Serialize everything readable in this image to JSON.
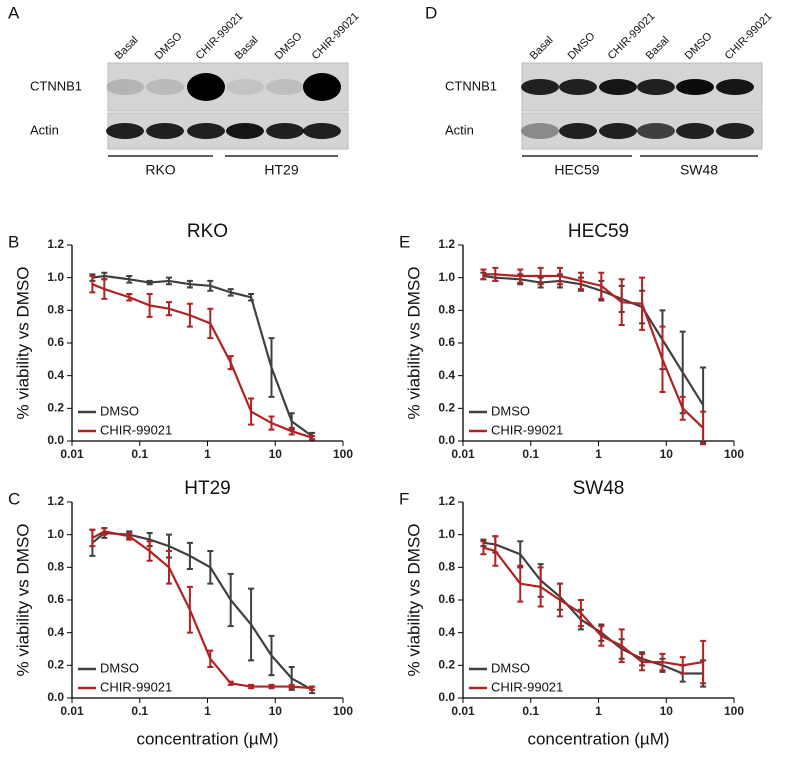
{
  "blots": [
    {
      "panel": "A",
      "row_labels": [
        "CTNNB1",
        "Actin"
      ],
      "lanes": [
        "Basal",
        "DMSO",
        "CHIR-99021",
        "Basal",
        "DMSO",
        "CHIR-99021"
      ],
      "groups": [
        "RKO",
        "HT29"
      ]
    },
    {
      "panel": "D",
      "row_labels": [
        "CTNNB1",
        "Actin"
      ],
      "lanes": [
        "Basal",
        "DMSO",
        "CHIR-99021",
        "Basal",
        "DMSO",
        "CHIR-99021"
      ],
      "groups": [
        "HEC59",
        "SW48"
      ]
    }
  ],
  "chart_data": [
    {
      "type": "line",
      "panel": "B",
      "title": "RKO",
      "ylabel": "% viability vs DMSO",
      "log_x": true,
      "x": [
        0.02,
        0.03,
        0.07,
        0.14,
        0.27,
        0.55,
        1.1,
        2.2,
        4.4,
        8.8,
        17.5,
        35
      ],
      "xlim": [
        0.01,
        100
      ],
      "xticks": [
        0.01,
        0.1,
        1,
        10,
        100
      ],
      "ylim": [
        0,
        1.2
      ],
      "yticks": [
        {
          "value": 0,
          "label": "0.0"
        },
        0.2,
        0.4,
        0.6,
        0.8,
        {
          "value": 1,
          "label": "1.0"
        },
        1.2
      ],
      "legend": "lower left",
      "series": [
        {
          "name": "DMSO",
          "color": "#404040",
          "values": [
            1.0,
            1.01,
            0.99,
            0.97,
            0.98,
            0.96,
            0.95,
            0.91,
            0.88,
            0.45,
            0.12,
            0.03
          ],
          "errors": [
            0.02,
            0.02,
            0.02,
            0.01,
            0.02,
            0.02,
            0.03,
            0.02,
            0.02,
            0.18,
            0.05,
            0.02
          ]
        },
        {
          "name": "CHIR-99021",
          "color": "#b22222",
          "values": [
            0.96,
            0.93,
            0.88,
            0.83,
            0.81,
            0.77,
            0.72,
            0.48,
            0.18,
            0.11,
            0.06,
            0.02
          ],
          "errors": [
            0.05,
            0.06,
            0.02,
            0.07,
            0.04,
            0.07,
            0.09,
            0.04,
            0.08,
            0.04,
            0.02,
            0.01
          ]
        }
      ]
    },
    {
      "type": "line",
      "panel": "C",
      "title": "HT29",
      "ylabel": "% viability vs DMSO",
      "xlabel": "concentration (µM)",
      "log_x": true,
      "x": [
        0.02,
        0.03,
        0.07,
        0.14,
        0.27,
        0.55,
        1.1,
        2.2,
        4.4,
        8.8,
        17.5,
        35
      ],
      "xlim": [
        0.01,
        100
      ],
      "xticks": [
        0.01,
        0.1,
        1,
        10,
        100
      ],
      "ylim": [
        0,
        1.2
      ],
      "yticks": [
        {
          "value": 0,
          "label": "0.0"
        },
        0.2,
        0.4,
        0.6,
        0.8,
        {
          "value": 1,
          "label": "1.0"
        },
        1.2
      ],
      "legend": "lower left",
      "series": [
        {
          "name": "DMSO",
          "color": "#404040",
          "values": [
            0.95,
            1.01,
            1.0,
            0.97,
            0.93,
            0.87,
            0.8,
            0.6,
            0.45,
            0.26,
            0.12,
            0.05
          ],
          "errors": [
            0.08,
            0.03,
            0.02,
            0.04,
            0.07,
            0.08,
            0.1,
            0.16,
            0.22,
            0.12,
            0.07,
            0.02
          ]
        },
        {
          "name": "CHIR-99021",
          "color": "#b22222",
          "values": [
            0.98,
            1.02,
            0.99,
            0.9,
            0.8,
            0.54,
            0.24,
            0.09,
            0.07,
            0.07,
            0.07,
            0.06
          ],
          "errors": [
            0.05,
            0.02,
            0.02,
            0.06,
            0.1,
            0.14,
            0.05,
            0.01,
            0.01,
            0.01,
            0.01,
            0.01
          ]
        }
      ]
    },
    {
      "type": "line",
      "panel": "E",
      "title": "HEC59",
      "ylabel": "% viability vs DMSO",
      "log_x": true,
      "x": [
        0.02,
        0.03,
        0.07,
        0.14,
        0.27,
        0.55,
        1.1,
        2.2,
        4.4,
        8.8,
        17.5,
        35
      ],
      "xlim": [
        0.01,
        100
      ],
      "xticks": [
        0.01,
        0.1,
        1,
        10,
        100
      ],
      "ylim": [
        0,
        1.2
      ],
      "yticks": [
        {
          "value": 0,
          "label": "0.0"
        },
        0.2,
        0.4,
        0.6,
        0.8,
        {
          "value": 1,
          "label": "1.0"
        },
        1.2
      ],
      "legend": "lower left",
      "series": [
        {
          "name": "DMSO",
          "color": "#404040",
          "values": [
            1.01,
            1.0,
            0.99,
            0.97,
            0.98,
            0.96,
            0.92,
            0.87,
            0.82,
            0.62,
            0.42,
            0.22
          ],
          "errors": [
            0.02,
            0.02,
            0.03,
            0.03,
            0.04,
            0.04,
            0.06,
            0.08,
            0.1,
            0.18,
            0.25,
            0.23
          ]
        },
        {
          "name": "CHIR-99021",
          "color": "#b22222",
          "values": [
            1.02,
            1.02,
            1.01,
            1.01,
            1.01,
            0.98,
            0.95,
            0.85,
            0.84,
            0.5,
            0.2,
            0.08
          ],
          "errors": [
            0.03,
            0.04,
            0.04,
            0.05,
            0.05,
            0.05,
            0.08,
            0.14,
            0.16,
            0.2,
            0.07,
            0.1
          ]
        }
      ]
    },
    {
      "type": "line",
      "panel": "F",
      "title": "SW48",
      "ylabel": "% viability vs DMSO",
      "xlabel": "concentration (µM)",
      "log_x": true,
      "x": [
        0.02,
        0.03,
        0.07,
        0.14,
        0.27,
        0.55,
        1.1,
        2.2,
        4.4,
        8.8,
        17.5,
        35
      ],
      "xlim": [
        0.01,
        100
      ],
      "xticks": [
        0.01,
        0.1,
        1,
        10,
        100
      ],
      "ylim": [
        0,
        1.2
      ],
      "yticks": [
        {
          "value": 0,
          "label": "0.0"
        },
        0.2,
        0.4,
        0.6,
        0.8,
        {
          "value": 1,
          "label": "1.0"
        },
        1.2
      ],
      "legend": "lower left",
      "series": [
        {
          "name": "DMSO",
          "color": "#404040",
          "values": [
            0.95,
            0.94,
            0.88,
            0.72,
            0.62,
            0.48,
            0.4,
            0.3,
            0.24,
            0.2,
            0.15,
            0.15
          ],
          "errors": [
            0.02,
            0.05,
            0.08,
            0.1,
            0.08,
            0.06,
            0.05,
            0.06,
            0.04,
            0.04,
            0.05,
            0.08
          ]
        },
        {
          "name": "CHIR-99021",
          "color": "#b22222",
          "values": [
            0.92,
            0.9,
            0.7,
            0.68,
            0.6,
            0.52,
            0.38,
            0.32,
            0.22,
            0.22,
            0.2,
            0.22
          ],
          "errors": [
            0.04,
            0.09,
            0.11,
            0.12,
            0.1,
            0.08,
            0.06,
            0.1,
            0.05,
            0.05,
            0.05,
            0.13
          ]
        }
      ]
    }
  ]
}
